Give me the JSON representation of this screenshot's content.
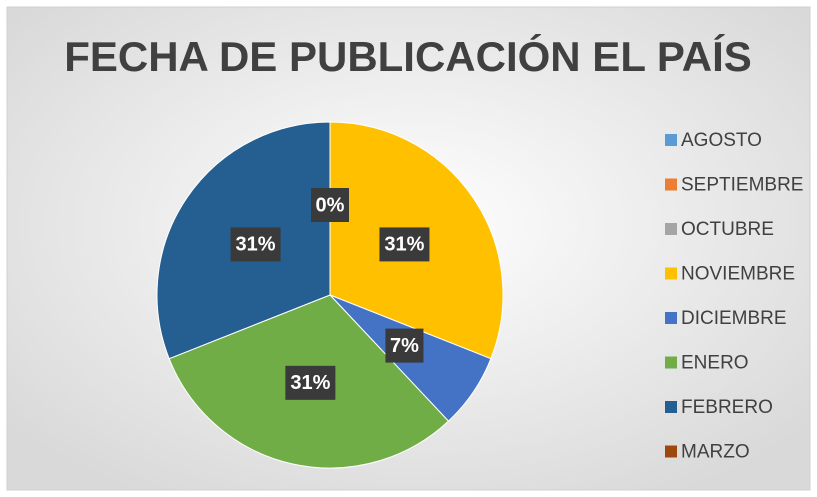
{
  "chart_data": {
    "type": "pie",
    "title": "FECHA DE PUBLICACIÓN EL PAÍS",
    "categories": [
      "AGOSTO",
      "SEPTIEMBRE",
      "OCTUBRE",
      "NOVIEMBRE",
      "DICIEMBRE",
      "ENERO",
      "FEBRERO",
      "MARZO"
    ],
    "values": [
      0,
      0,
      0,
      31,
      7,
      31,
      31,
      0
    ],
    "value_labels": [
      "0%",
      null,
      null,
      "31%",
      "7%",
      "31%",
      "31%",
      null
    ],
    "colors": [
      "#5b9bd5",
      "#ed7d31",
      "#a5a5a5",
      "#ffc000",
      "#4472c4",
      "#70ad47",
      "#255e91",
      "#9e480e"
    ],
    "legend": "right"
  }
}
